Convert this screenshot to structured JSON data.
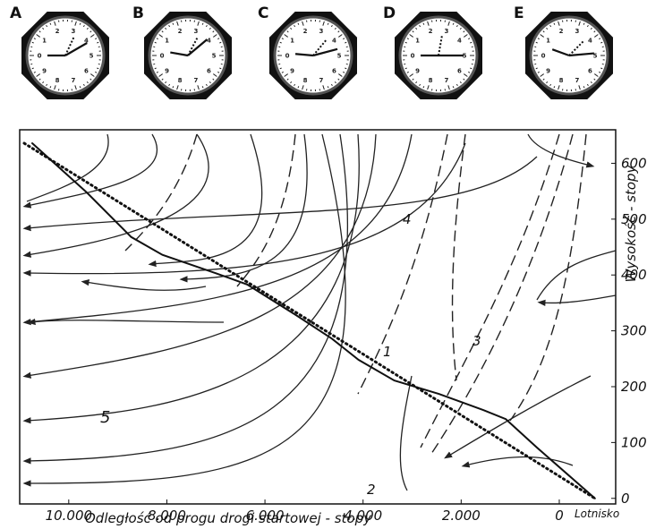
{
  "gauges": {
    "letters": [
      "A",
      "B",
      "C",
      "D",
      "E"
    ],
    "dial_labels": [
      "0",
      "1",
      "2",
      "3",
      "4",
      "5",
      "6",
      "7",
      "8",
      "9"
    ]
  },
  "chart_data": {
    "type": "line",
    "xlabel": "Odległość od progu drogi startowej - stopy",
    "ylabel": "Wysokość - stopy",
    "annotations": [
      "Lotnisko",
      "1",
      "2",
      "3",
      "4",
      "5"
    ],
    "xlim": [
      11000,
      -1150
    ],
    "ylim": [
      -10,
      660
    ],
    "xticks": [
      {
        "value": 10000,
        "label": "10.000"
      },
      {
        "value": 8000,
        "label": "8.000"
      },
      {
        "value": 6000,
        "label": "6.000"
      },
      {
        "value": 4000,
        "label": "4.000"
      },
      {
        "value": 2000,
        "label": "2.000"
      },
      0
    ],
    "yticks": [
      0,
      100,
      200,
      300,
      400,
      500,
      600
    ],
    "series": [
      {
        "style": "solid",
        "color": "#111111",
        "x": [
          10745,
          9636,
          8727,
          8091,
          7000,
          6364,
          5364,
          4636,
          4091,
          3364,
          2455,
          1545,
          1091,
          455,
          -273,
          -727
        ],
        "values": [
          636,
          548,
          468,
          436,
          403,
          383,
          328,
          286,
          248,
          211,
          187,
          158,
          142,
          91,
          35,
          0
        ]
      },
      {
        "style": "dotted",
        "color": "#111111",
        "x": [
          10909,
          -727
        ],
        "values": [
          636,
          0
        ]
      }
    ]
  }
}
